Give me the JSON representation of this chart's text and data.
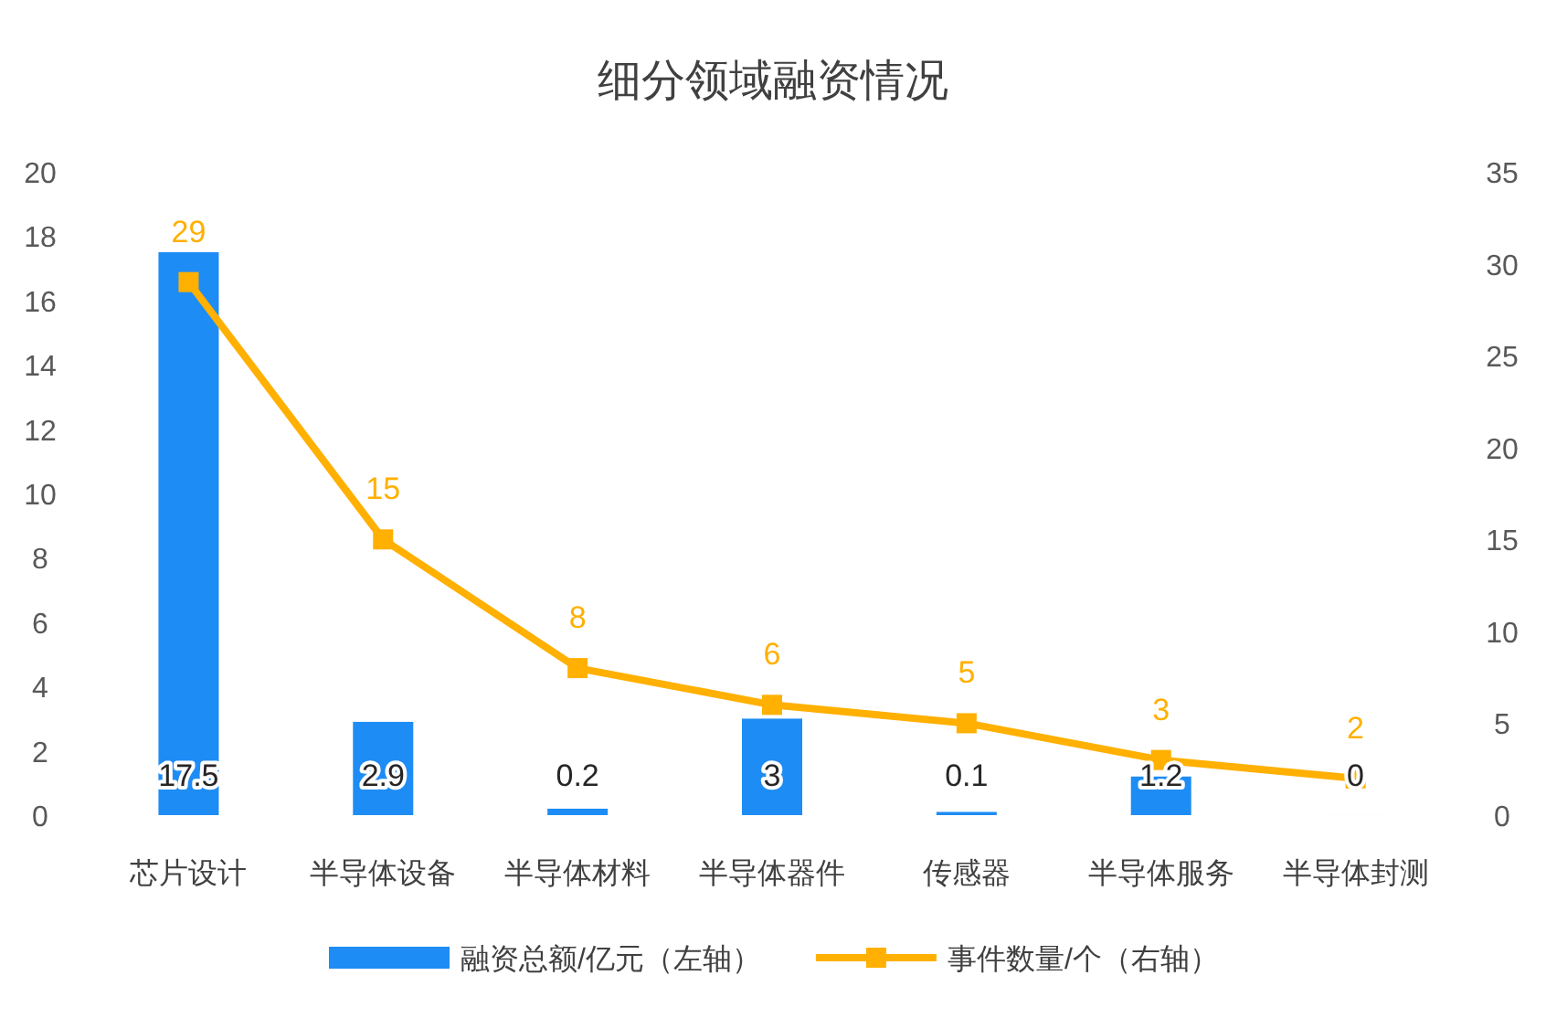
{
  "chart_data": {
    "type": "bar",
    "title": "细分领域融资情况",
    "categories": [
      "芯片设计",
      "半导体设备",
      "半导体材料",
      "半导体器件",
      "传感器",
      "半导体服务",
      "半导体封测"
    ],
    "series": [
      {
        "name": "融资总额/亿元（左轴）",
        "color": "#1e8cf5",
        "values": [
          17.5,
          2.9,
          0.2,
          3,
          0.1,
          1.2,
          0
        ]
      },
      {
        "name": "事件数量/个（右轴）",
        "type": "line",
        "axis": "y2",
        "color": "#ffb000",
        "marker": "square",
        "line_style": "solid",
        "values": [
          29,
          15,
          8,
          6,
          5,
          3,
          2
        ]
      }
    ],
    "ylim": [
      0,
      20
    ],
    "yticks": [
      0,
      2,
      4,
      6,
      8,
      10,
      12,
      14,
      16,
      18,
      20
    ],
    "y2lim": [
      0,
      35
    ],
    "y2ticks": [
      0,
      5,
      10,
      15,
      20,
      25,
      30,
      35
    ],
    "data_labels": true,
    "legend": "bottom",
    "grid": false
  }
}
